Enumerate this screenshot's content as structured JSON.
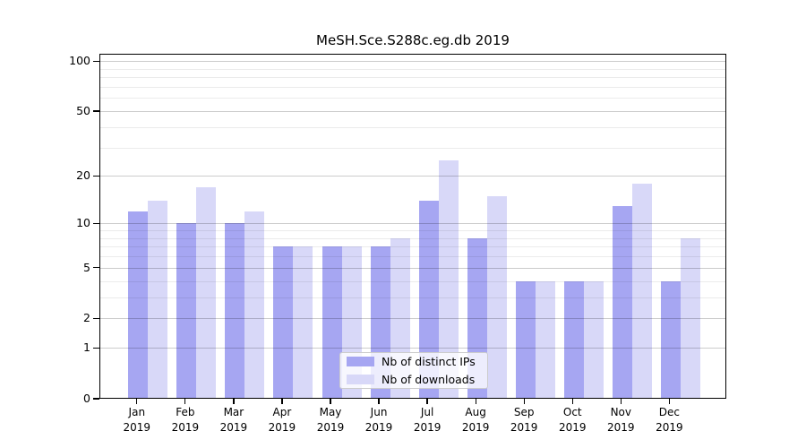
{
  "chart_data": {
    "type": "bar",
    "title": "MeSH.Sce.S288c.eg.db 2019",
    "categories": [
      "Jan 2019",
      "Feb 2019",
      "Mar 2019",
      "Apr 2019",
      "May 2019",
      "Jun 2019",
      "Jul 2019",
      "Aug 2019",
      "Sep 2019",
      "Oct 2019",
      "Nov 2019",
      "Dec 2019"
    ],
    "series": [
      {
        "name": "Nb of distinct IPs",
        "color": "#a6a6f2",
        "values": [
          12,
          10,
          10,
          7,
          7,
          7,
          14,
          8,
          4,
          4,
          13,
          4
        ]
      },
      {
        "name": "Nb of downloads",
        "color": "#d8d8f8",
        "values": [
          14,
          17,
          12,
          7,
          7,
          8,
          25,
          15,
          4,
          4,
          18,
          8
        ]
      }
    ],
    "yscale": "log1p",
    "yticks": [
      0,
      1,
      2,
      5,
      10,
      20,
      50,
      100
    ],
    "ylim": [
      0,
      112
    ],
    "xlabel": "",
    "ylabel": "",
    "grid": true,
    "legend_position": "inside-bottom-center"
  },
  "colors": {
    "background": "#ffffff",
    "axis": "#000000",
    "text": "#000000",
    "grid_major": "rgba(0,0,0,0.20)",
    "grid_minor": "rgba(0,0,0,0.08)",
    "legend_bg": "rgba(255,255,255,0.8)",
    "legend_border": "#cccccc"
  }
}
